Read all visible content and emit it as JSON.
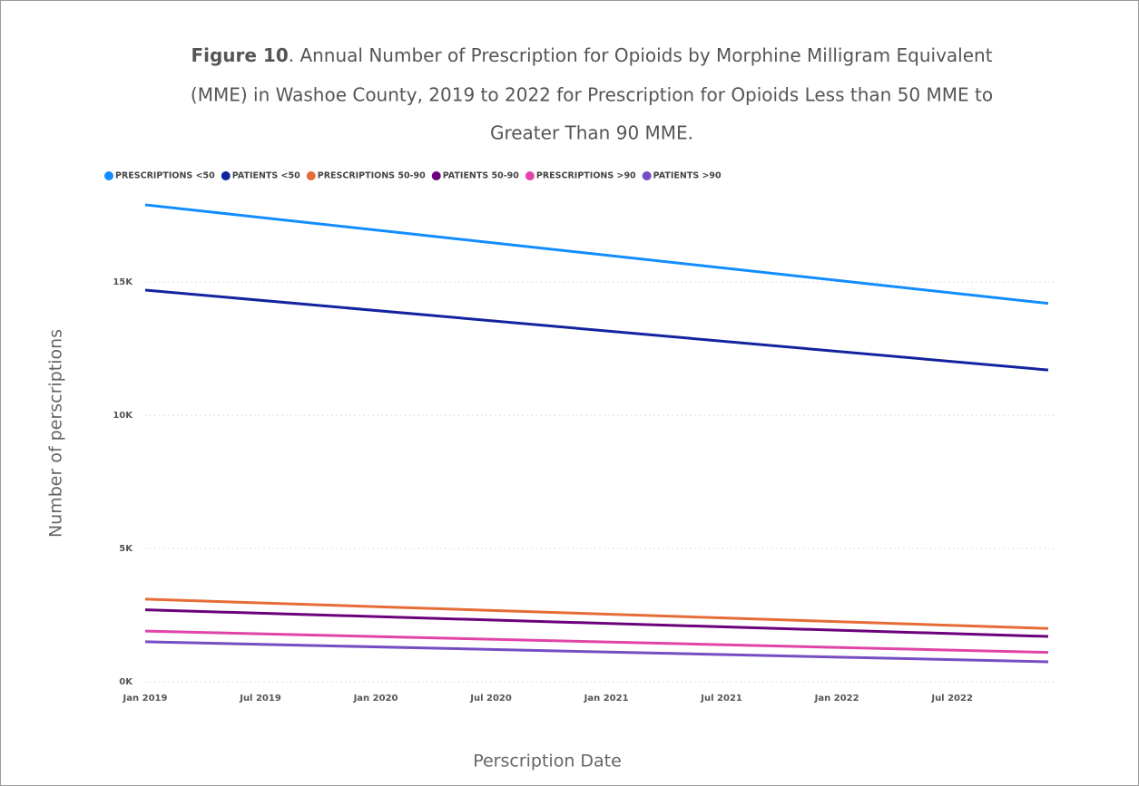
{
  "chart_data": {
    "type": "line",
    "figure_label": "Figure 10",
    "title_lines": [
      ". Annual Number of Prescription for Opioids by Morphine Milligram Equivalent",
      "(MME) in Washoe County, 2019 to 2022 for Prescription for Opioids Less than 50 MME to",
      "Greater Than 90 MME."
    ],
    "x_label": "Perscription Date",
    "y_label": "Number of perscriptions",
    "x": [
      "2019-01",
      "2022-12"
    ],
    "xlim": [
      "2019-01",
      "2022-12"
    ],
    "xticks": [
      {
        "value": "2019-01",
        "label": "Jan 2019"
      },
      {
        "value": "2019-07",
        "label": "Jul 2019"
      },
      {
        "value": "2020-01",
        "label": "Jan 2020"
      },
      {
        "value": "2020-07",
        "label": "Jul 2020"
      },
      {
        "value": "2021-01",
        "label": "Jan 2021"
      },
      {
        "value": "2021-07",
        "label": "Jul 2021"
      },
      {
        "value": "2022-01",
        "label": "Jan 2022"
      },
      {
        "value": "2022-07",
        "label": "Jul 2022"
      }
    ],
    "ylim": [
      0,
      18000
    ],
    "yticks": [
      {
        "value": 0,
        "label": "0K"
      },
      {
        "value": 5000,
        "label": "5K"
      },
      {
        "value": 10000,
        "label": "10K"
      },
      {
        "value": 15000,
        "label": "15K"
      }
    ],
    "grid": true,
    "legend": "top-left",
    "series": [
      {
        "name": "PRESCRIPTIONS <50",
        "color": "#118dff",
        "values": [
          17900,
          14200
        ]
      },
      {
        "name": "PATIENTS <50",
        "color": "#12239e",
        "values": [
          14700,
          11700
        ]
      },
      {
        "name": "PRESCRIPTIONS 50-90",
        "color": "#e66c37",
        "values": [
          3100,
          2000
        ]
      },
      {
        "name": "PATIENTS 50-90",
        "color": "#6b007b",
        "values": [
          2700,
          1700
        ]
      },
      {
        "name": "PRESCRIPTIONS >90",
        "color": "#e044a7",
        "values": [
          1900,
          1100
        ]
      },
      {
        "name": "PATIENTS >90",
        "color": "#744ec2",
        "values": [
          1500,
          750
        ]
      }
    ]
  }
}
